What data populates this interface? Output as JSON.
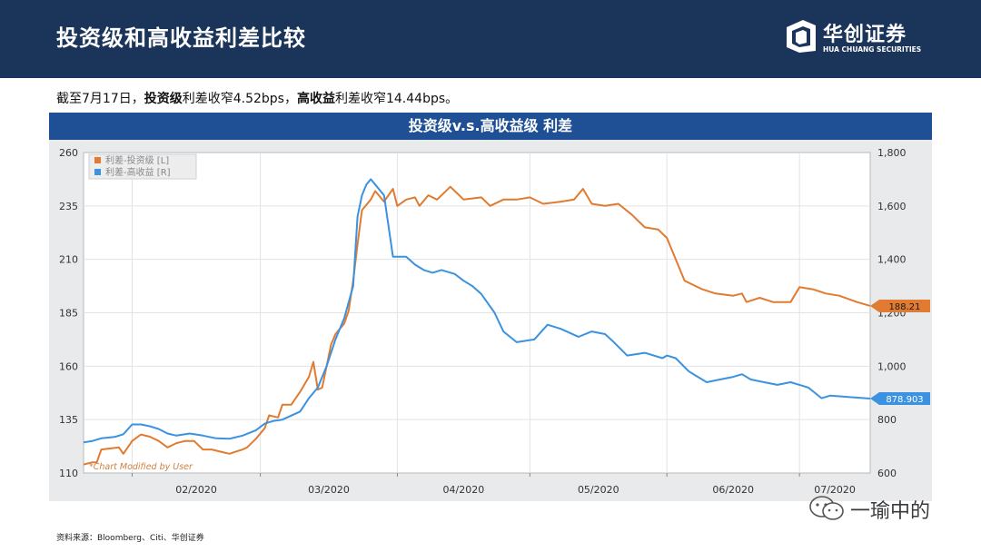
{
  "header": {
    "title": "投资级和高收益利差比较"
  },
  "logo": {
    "name_cn": "华创证券",
    "name_en": "HUA CHUANG SECURITIES"
  },
  "summary": {
    "part1": "截至7月17日，",
    "part2": "投资级",
    "part3": "利差收窄4.52bps，",
    "part4": "高收益",
    "part5": "利差收窄14.44bps。"
  },
  "source": {
    "text": "资料来源：Bloomberg、Citi、华创证券"
  },
  "watermark": {
    "text": "一瑜中的"
  },
  "colors": {
    "ig": "#e07b31",
    "hy": "#3a92e0",
    "header_bg": "#1b3459",
    "banner_bg": "#1f4f94"
  },
  "chart_data": {
    "type": "line",
    "title": "投资级v.s.高收益级 利差",
    "annotation": "*Chart Modified by User",
    "x_range": [
      "2020-01-21",
      "2020-07-17"
    ],
    "x_ticks": [
      {
        "date": "2020-02-01",
        "label": "02/2020"
      },
      {
        "date": "2020-03-01",
        "label": "03/2020"
      },
      {
        "date": "2020-04-01",
        "label": "04/2020"
      },
      {
        "date": "2020-05-01",
        "label": "05/2020"
      },
      {
        "date": "2020-06-01",
        "label": "06/2020"
      },
      {
        "date": "2020-07-01",
        "label": "07/2020"
      }
    ],
    "left_axis": {
      "ylim": [
        110,
        260
      ],
      "ticks": [
        "110",
        "135",
        "160",
        "185",
        "210",
        "235",
        "260"
      ]
    },
    "right_axis": {
      "ylim": [
        600,
        1800
      ],
      "ticks": [
        "600",
        "800",
        "1,000",
        "1,200",
        "1,400",
        "1,600",
        "1,800"
      ]
    },
    "legend_position": "top-left",
    "grid": true,
    "series": [
      {
        "name": "利差-投资级 [L]",
        "axis": "left",
        "last_label": "188.21",
        "points": [
          [
            "2020-01-21",
            114
          ],
          [
            "2020-01-23",
            115
          ],
          [
            "2020-01-24",
            115
          ],
          [
            "2020-01-25",
            121
          ],
          [
            "2020-01-29",
            122
          ],
          [
            "2020-01-30",
            119
          ],
          [
            "2020-02-01",
            125
          ],
          [
            "2020-02-03",
            128
          ],
          [
            "2020-02-05",
            127
          ],
          [
            "2020-02-07",
            125
          ],
          [
            "2020-02-09",
            122
          ],
          [
            "2020-02-11",
            124
          ],
          [
            "2020-02-13",
            125
          ],
          [
            "2020-02-15",
            125
          ],
          [
            "2020-02-17",
            121
          ],
          [
            "2020-02-19",
            121
          ],
          [
            "2020-02-21",
            120
          ],
          [
            "2020-02-23",
            119
          ],
          [
            "2020-02-26",
            121
          ],
          [
            "2020-02-27",
            122
          ],
          [
            "2020-02-29",
            126
          ],
          [
            "2020-03-02",
            131
          ],
          [
            "2020-03-03",
            137
          ],
          [
            "2020-03-05",
            136
          ],
          [
            "2020-03-06",
            142
          ],
          [
            "2020-03-08",
            142
          ],
          [
            "2020-03-10",
            148
          ],
          [
            "2020-03-12",
            155
          ],
          [
            "2020-03-13",
            162
          ],
          [
            "2020-03-14",
            149
          ],
          [
            "2020-03-15",
            150
          ],
          [
            "2020-03-17",
            170
          ],
          [
            "2020-03-18",
            175
          ],
          [
            "2020-03-20",
            180
          ],
          [
            "2020-03-21",
            186
          ],
          [
            "2020-03-22",
            200
          ],
          [
            "2020-03-23",
            217
          ],
          [
            "2020-03-24",
            233
          ],
          [
            "2020-03-26",
            238
          ],
          [
            "2020-03-27",
            242
          ],
          [
            "2020-03-29",
            237
          ],
          [
            "2020-03-31",
            243
          ],
          [
            "2020-04-01",
            235
          ],
          [
            "2020-04-03",
            238
          ],
          [
            "2020-04-05",
            239
          ],
          [
            "2020-04-06",
            235
          ],
          [
            "2020-04-08",
            240
          ],
          [
            "2020-04-10",
            238
          ],
          [
            "2020-04-13",
            244
          ],
          [
            "2020-04-16",
            238
          ],
          [
            "2020-04-20",
            239
          ],
          [
            "2020-04-22",
            235
          ],
          [
            "2020-04-25",
            238
          ],
          [
            "2020-04-28",
            238
          ],
          [
            "2020-05-01",
            239
          ],
          [
            "2020-05-04",
            236
          ],
          [
            "2020-05-08",
            237
          ],
          [
            "2020-05-11",
            238
          ],
          [
            "2020-05-13",
            243
          ],
          [
            "2020-05-15",
            236
          ],
          [
            "2020-05-18",
            235
          ],
          [
            "2020-05-21",
            236
          ],
          [
            "2020-05-24",
            231
          ],
          [
            "2020-05-27",
            225
          ],
          [
            "2020-05-30",
            224
          ],
          [
            "2020-06-01",
            220
          ],
          [
            "2020-06-05",
            200
          ],
          [
            "2020-06-09",
            196
          ],
          [
            "2020-06-12",
            194
          ],
          [
            "2020-06-16",
            193
          ],
          [
            "2020-06-18",
            194
          ],
          [
            "2020-06-19",
            190
          ],
          [
            "2020-06-22",
            192
          ],
          [
            "2020-06-25",
            190
          ],
          [
            "2020-06-29",
            190
          ],
          [
            "2020-07-01",
            197
          ],
          [
            "2020-07-04",
            196
          ],
          [
            "2020-07-07",
            194
          ],
          [
            "2020-07-10",
            193
          ],
          [
            "2020-07-14",
            190
          ],
          [
            "2020-07-17",
            188.21
          ]
        ]
      },
      {
        "name": "利差-高收益 [R]",
        "axis": "right",
        "last_label": "878.903",
        "points": [
          [
            "2020-01-21",
            715
          ],
          [
            "2020-01-23",
            720
          ],
          [
            "2020-01-25",
            730
          ],
          [
            "2020-01-28",
            735
          ],
          [
            "2020-01-30",
            745
          ],
          [
            "2020-02-01",
            782
          ],
          [
            "2020-02-03",
            782
          ],
          [
            "2020-02-05",
            775
          ],
          [
            "2020-02-07",
            765
          ],
          [
            "2020-02-09",
            748
          ],
          [
            "2020-02-11",
            740
          ],
          [
            "2020-02-14",
            748
          ],
          [
            "2020-02-17",
            740
          ],
          [
            "2020-02-20",
            730
          ],
          [
            "2020-02-23",
            728
          ],
          [
            "2020-02-26",
            740
          ],
          [
            "2020-02-29",
            760
          ],
          [
            "2020-03-02",
            785
          ],
          [
            "2020-03-04",
            795
          ],
          [
            "2020-03-06",
            800
          ],
          [
            "2020-03-10",
            830
          ],
          [
            "2020-03-12",
            880
          ],
          [
            "2020-03-14",
            920
          ],
          [
            "2020-03-16",
            1000
          ],
          [
            "2020-03-18",
            1100
          ],
          [
            "2020-03-20",
            1180
          ],
          [
            "2020-03-22",
            1300
          ],
          [
            "2020-03-23",
            1560
          ],
          [
            "2020-03-24",
            1640
          ],
          [
            "2020-03-25",
            1680
          ],
          [
            "2020-03-26",
            1700
          ],
          [
            "2020-03-27",
            1680
          ],
          [
            "2020-03-29",
            1640
          ],
          [
            "2020-03-31",
            1410
          ],
          [
            "2020-04-03",
            1410
          ],
          [
            "2020-04-05",
            1380
          ],
          [
            "2020-04-07",
            1360
          ],
          [
            "2020-04-09",
            1350
          ],
          [
            "2020-04-11",
            1360
          ],
          [
            "2020-04-14",
            1345
          ],
          [
            "2020-04-16",
            1320
          ],
          [
            "2020-04-18",
            1300
          ],
          [
            "2020-04-20",
            1270
          ],
          [
            "2020-04-23",
            1200
          ],
          [
            "2020-04-25",
            1130
          ],
          [
            "2020-04-28",
            1090
          ],
          [
            "2020-05-02",
            1100
          ],
          [
            "2020-05-05",
            1155
          ],
          [
            "2020-05-08",
            1140
          ],
          [
            "2020-05-12",
            1110
          ],
          [
            "2020-05-15",
            1130
          ],
          [
            "2020-05-18",
            1120
          ],
          [
            "2020-05-20",
            1090
          ],
          [
            "2020-05-23",
            1040
          ],
          [
            "2020-05-27",
            1050
          ],
          [
            "2020-05-31",
            1030
          ],
          [
            "2020-06-01",
            1040
          ],
          [
            "2020-06-03",
            1030
          ],
          [
            "2020-06-06",
            980
          ],
          [
            "2020-06-10",
            940
          ],
          [
            "2020-06-13",
            950
          ],
          [
            "2020-06-16",
            960
          ],
          [
            "2020-06-18",
            970
          ],
          [
            "2020-06-20",
            950
          ],
          [
            "2020-06-23",
            940
          ],
          [
            "2020-06-26",
            930
          ],
          [
            "2020-06-29",
            940
          ],
          [
            "2020-07-01",
            930
          ],
          [
            "2020-07-03",
            920
          ],
          [
            "2020-07-06",
            880
          ],
          [
            "2020-07-08",
            890
          ],
          [
            "2020-07-12",
            885
          ],
          [
            "2020-07-17",
            878.903
          ]
        ]
      }
    ]
  }
}
